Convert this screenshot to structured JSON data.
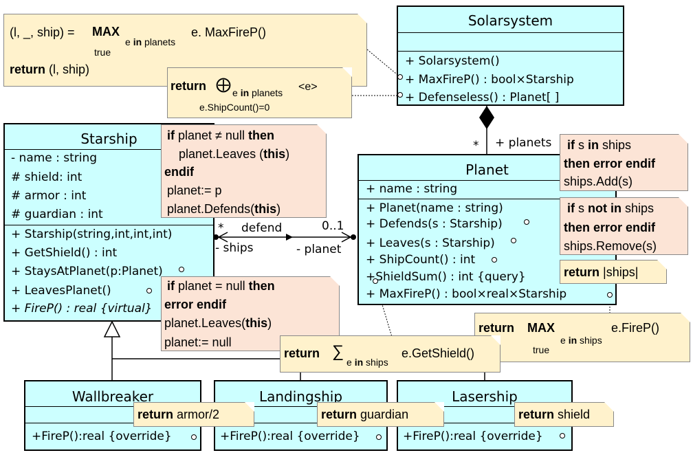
{
  "solarsystem": {
    "name": "Solarsystem",
    "methods": [
      "+ Solarsystem()",
      "+ MaxFireP() : bool×Starship",
      "+ Defenseless() : Planet[ ]"
    ]
  },
  "planet": {
    "name": "Planet",
    "attributes": [
      "+ name : string"
    ],
    "methods": [
      "+ Planet(name : string)",
      "+ Defends(s : Starship)",
      "+ Leaves(s : Starship)",
      "+ ShipCount() : int",
      "+ShieldSum() : int {query}",
      "+ MaxFireP() : bool×real×Starship"
    ]
  },
  "starship": {
    "name": "Starship",
    "attributes": [
      "- name : string",
      "# shield: int",
      "# armor : int",
      "# guardian : int"
    ],
    "methods": [
      "+ Starship(string,int,int,int)",
      "+ GetShield() : int",
      "+ StaysAtPlanet(p:Planet)",
      "+ LeavesPlanet()",
      "+ FireP() : real {virtual}"
    ]
  },
  "wallbreaker": {
    "name": "Wallbreaker",
    "method": "+FireP():real {override}"
  },
  "landingship": {
    "name": "Landingship",
    "method": "+FireP():real {override}"
  },
  "lasership": {
    "name": "Lasership",
    "method": "+FireP():real {override}"
  },
  "association": {
    "planets_role": "+ planets",
    "planets_mult": "*",
    "defend_label": "defend",
    "ships_mult": "*",
    "ships_role": "- ships",
    "planet_mult": "0..1",
    "planet_role": "- planet"
  },
  "notes": {
    "maxfire_solar": {
      "l1_prefix": "(l, _, ship) = ",
      "max": "MAX",
      "cond": "true",
      "sub_e": "e ",
      "sub_in": "in",
      "sub_planets": " planets",
      "expr": " e. MaxFireP()",
      "ret": "return",
      "ret_val": "  (l, ship)"
    },
    "defenseless": {
      "ret": "return",
      "op": "⨁",
      "sub_e": "e ",
      "sub_in": "in",
      "sub_planets": " planets",
      "expr": " <e>",
      "cond": "e.ShipCount()=0"
    },
    "stays": {
      "if": "if",
      "l1": " planet ≠ null ",
      "then": "then",
      "l2a": "planet.Leaves (",
      "this": "this",
      "l2b": ")",
      "endif": "endif",
      "l3": "planet:= p",
      "l4a": "planet.Defends(",
      "l4b": ")"
    },
    "leaves": {
      "if": "if",
      "l1": " planet = null ",
      "then": "then",
      "error_endif": "error endif",
      "l3a": "planet.Leaves(",
      "this": "this",
      "l3b": ")",
      "l4": "planet:= null"
    },
    "defends": {
      "if": "if",
      "l1a": " s ",
      "in": "in",
      "l1b": " ships",
      "then_error_endif": "then error endif",
      "l3": "ships.Add(s)"
    },
    "leaves_planet": {
      "if": "if",
      "l1a": " s ",
      "notin": "not in",
      "l1b": " ships",
      "then_error_endif": "then error endif",
      "l3": "ships.Remove(s)"
    },
    "shipcount": {
      "ret": "return",
      "val": " |ships|"
    },
    "maxfire_planet": {
      "ret": "return",
      "max": "MAX",
      "cond": "true",
      "sub_e": "e ",
      "sub_in": "in",
      "sub_ships": " ships",
      "expr": "e.FireP()"
    },
    "shieldsum": {
      "ret": "return",
      "op": "∑",
      "sub_e": "e ",
      "sub_in": "in",
      "sub_ships": " ships",
      "expr": "e.GetShield()"
    },
    "wall": {
      "ret": "return",
      "val": "  armor/2"
    },
    "land": {
      "ret": "return",
      "val": "  guardian"
    },
    "laser": {
      "ret": "return",
      "val": "  shield"
    }
  }
}
